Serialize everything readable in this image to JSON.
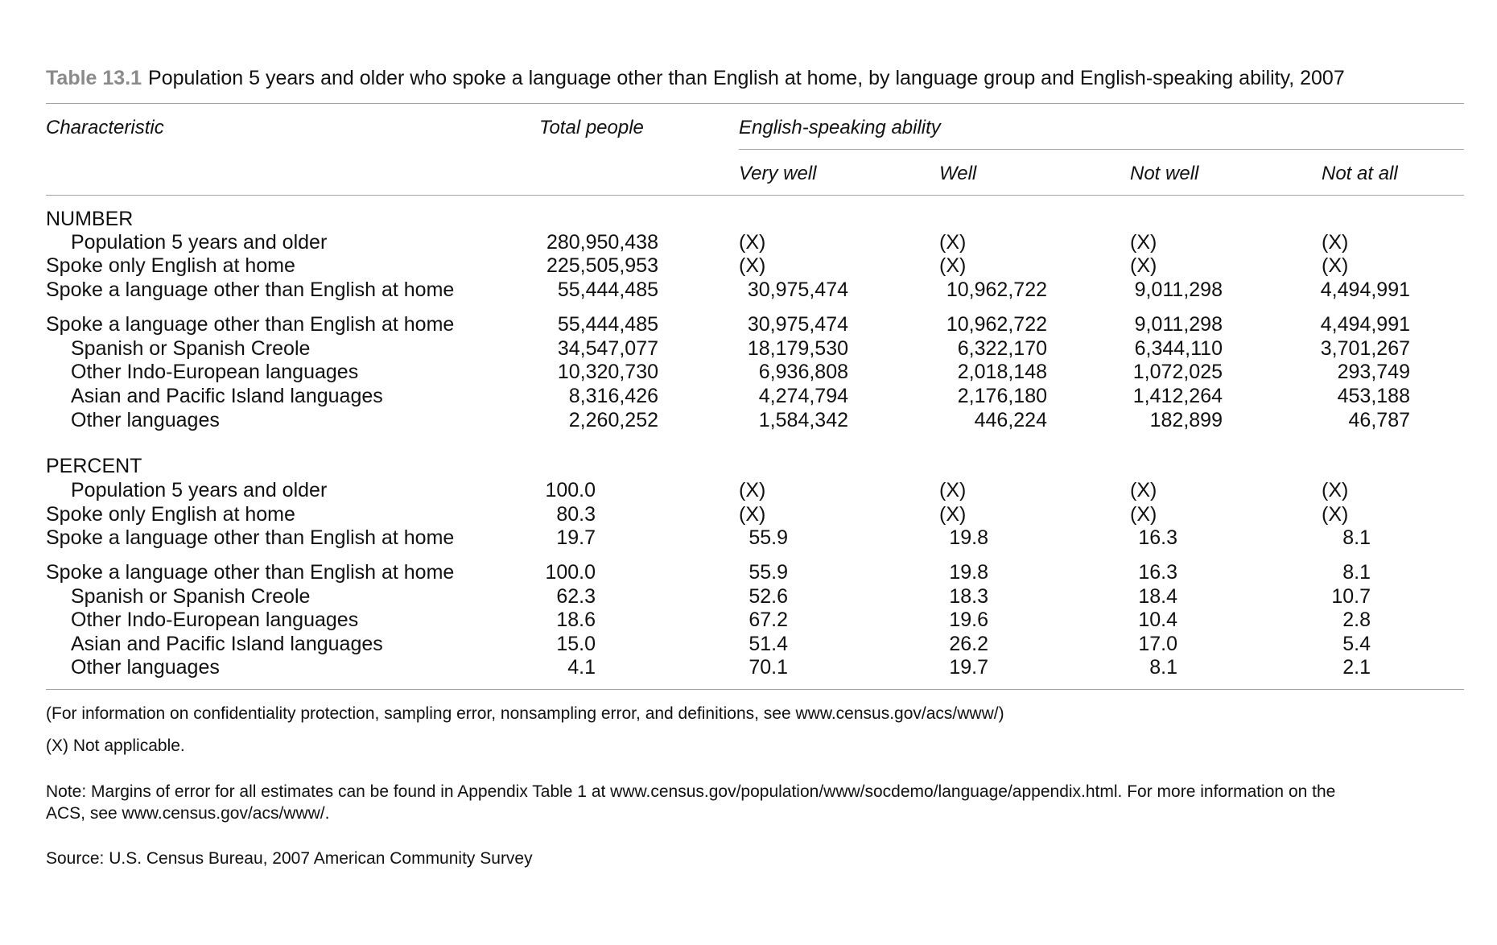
{
  "caption": {
    "label": "Table 13.1",
    "text": "Population 5 years and older who spoke a language other than English at home, by language group and English-speaking ability, 2007"
  },
  "headers": {
    "characteristic": "Characteristic",
    "total": "Total people",
    "group": "English-speaking ability",
    "very_well": "Very well",
    "well": "Well",
    "not_well": "Not well",
    "not_at_all": "Not at all"
  },
  "sections": {
    "number": "NUMBER",
    "percent": "PERCENT"
  },
  "rows": [
    {
      "label": "Population 5 years and older",
      "indent": true,
      "total": "280,950,438",
      "very_well": "(X)",
      "well": "(X)",
      "not_well": "(X)",
      "not_at_all": "(X)"
    },
    {
      "label": "Spoke only English at home",
      "indent": false,
      "total": "225,505,953",
      "very_well": "(X)",
      "well": "(X)",
      "not_well": "(X)",
      "not_at_all": "(X)"
    },
    {
      "label": "Spoke a language other than English at home",
      "indent": false,
      "total": "55,444,485",
      "very_well": "30,975,474",
      "well": "10,962,722",
      "not_well": "9,011,298",
      "not_at_all": "4,494,991"
    },
    {
      "label": "Spoke a language other than English at home",
      "indent": false,
      "total": "55,444,485",
      "very_well": "30,975,474",
      "well": "10,962,722",
      "not_well": "9,011,298",
      "not_at_all": "4,494,991"
    },
    {
      "label": "Spanish or Spanish Creole",
      "indent": true,
      "total": "34,547,077",
      "very_well": "18,179,530",
      "well": "6,322,170",
      "not_well": "6,344,110",
      "not_at_all": "3,701,267"
    },
    {
      "label": "Other Indo-European languages",
      "indent": true,
      "total": "10,320,730",
      "very_well": "6,936,808",
      "well": "2,018,148",
      "not_well": "1,072,025",
      "not_at_all": "293,749"
    },
    {
      "label": "Asian and Pacific Island languages",
      "indent": true,
      "total": "8,316,426",
      "very_well": "4,274,794",
      "well": "2,176,180",
      "not_well": "1,412,264",
      "not_at_all": "453,188"
    },
    {
      "label": "Other languages",
      "indent": true,
      "total": "2,260,252",
      "very_well": "1,584,342",
      "well": "446,224",
      "not_well": "182,899",
      "not_at_all": "46,787"
    },
    {
      "label": "Population 5 years and older",
      "indent": true,
      "total": "100.0",
      "very_well": "(X)",
      "well": "(X)",
      "not_well": "(X)",
      "not_at_all": "(X)"
    },
    {
      "label": "Spoke only English at home",
      "indent": false,
      "total": "80.3",
      "very_well": "(X)",
      "well": "(X)",
      "not_well": "(X)",
      "not_at_all": "(X)"
    },
    {
      "label": "Spoke a language other than English at home",
      "indent": false,
      "total": "19.7",
      "very_well": "55.9",
      "well": "19.8",
      "not_well": "16.3",
      "not_at_all": "8.1"
    },
    {
      "label": "Spoke a language other than English at home",
      "indent": false,
      "total": "100.0",
      "very_well": "55.9",
      "well": "19.8",
      "not_well": "16.3",
      "not_at_all": "8.1"
    },
    {
      "label": "Spanish or Spanish Creole",
      "indent": true,
      "total": "62.3",
      "very_well": "52.6",
      "well": "18.3",
      "not_well": "18.4",
      "not_at_all": "10.7"
    },
    {
      "label": "Other Indo-European languages",
      "indent": true,
      "total": "18.6",
      "very_well": "67.2",
      "well": "19.6",
      "not_well": "10.4",
      "not_at_all": "2.8"
    },
    {
      "label": "Asian and Pacific Island languages",
      "indent": true,
      "total": "15.0",
      "very_well": "51.4",
      "well": "26.2",
      "not_well": "17.0",
      "not_at_all": "5.4"
    },
    {
      "label": "Other languages",
      "indent": true,
      "total": "4.1",
      "very_well": "70.1",
      "well": "19.7",
      "not_well": "8.1",
      "not_at_all": "2.1"
    }
  ],
  "notes": {
    "info": "(For information on confidentiality protection, sampling error, nonsampling error, and definitions, see www.census.gov/acs/www/)",
    "na": "(X) Not applicable.",
    "margins_line1": "Note: Margins of error for all estimates can be found in Appendix Table 1 at www.census.gov/population/www/socdemo/language/appendix.html. For more information on the",
    "margins_line2": "ACS, see www.census.gov/acs/www/.",
    "source": "Source: U.S. Census Bureau, 2007 American Community Survey"
  }
}
